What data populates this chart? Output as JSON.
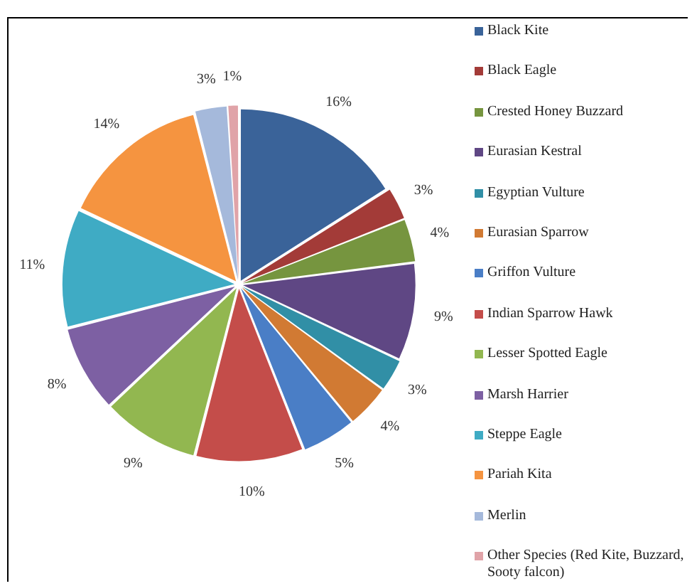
{
  "chart_data": {
    "type": "pie",
    "categories": [
      "Black Kite",
      "Black Eagle",
      "Crested Honey Buzzard",
      "Eurasian Kestral",
      "Egyptian Vulture",
      "Eurasian Sparrow",
      "Griffon Vulture",
      "Indian Sparrow Hawk",
      "Lesser Spotted Eagle",
      "Marsh Harrier",
      "Steppe Eagle",
      "Pariah Kita",
      "Merlin",
      "Other Species (Red Kite, Buzzard, Sooty falcon)"
    ],
    "values": [
      16,
      3,
      4,
      9,
      3,
      4,
      5,
      10,
      9,
      8,
      11,
      14,
      3,
      1
    ],
    "value_labels": [
      "16%",
      "3%",
      "4%",
      "9%",
      "3%",
      "4%",
      "5%",
      "10%",
      "9%",
      "8%",
      "11%",
      "14%",
      "3%",
      "1%"
    ],
    "colors": [
      "#3a6399",
      "#a33b38",
      "#76953f",
      "#5f4784",
      "#318fa6",
      "#d17a33",
      "#4a7ec6",
      "#c44d4a",
      "#92b750",
      "#7d60a3",
      "#3fabc4",
      "#f59440",
      "#a5b9db",
      "#e0a3a8"
    ],
    "legend": "right"
  }
}
